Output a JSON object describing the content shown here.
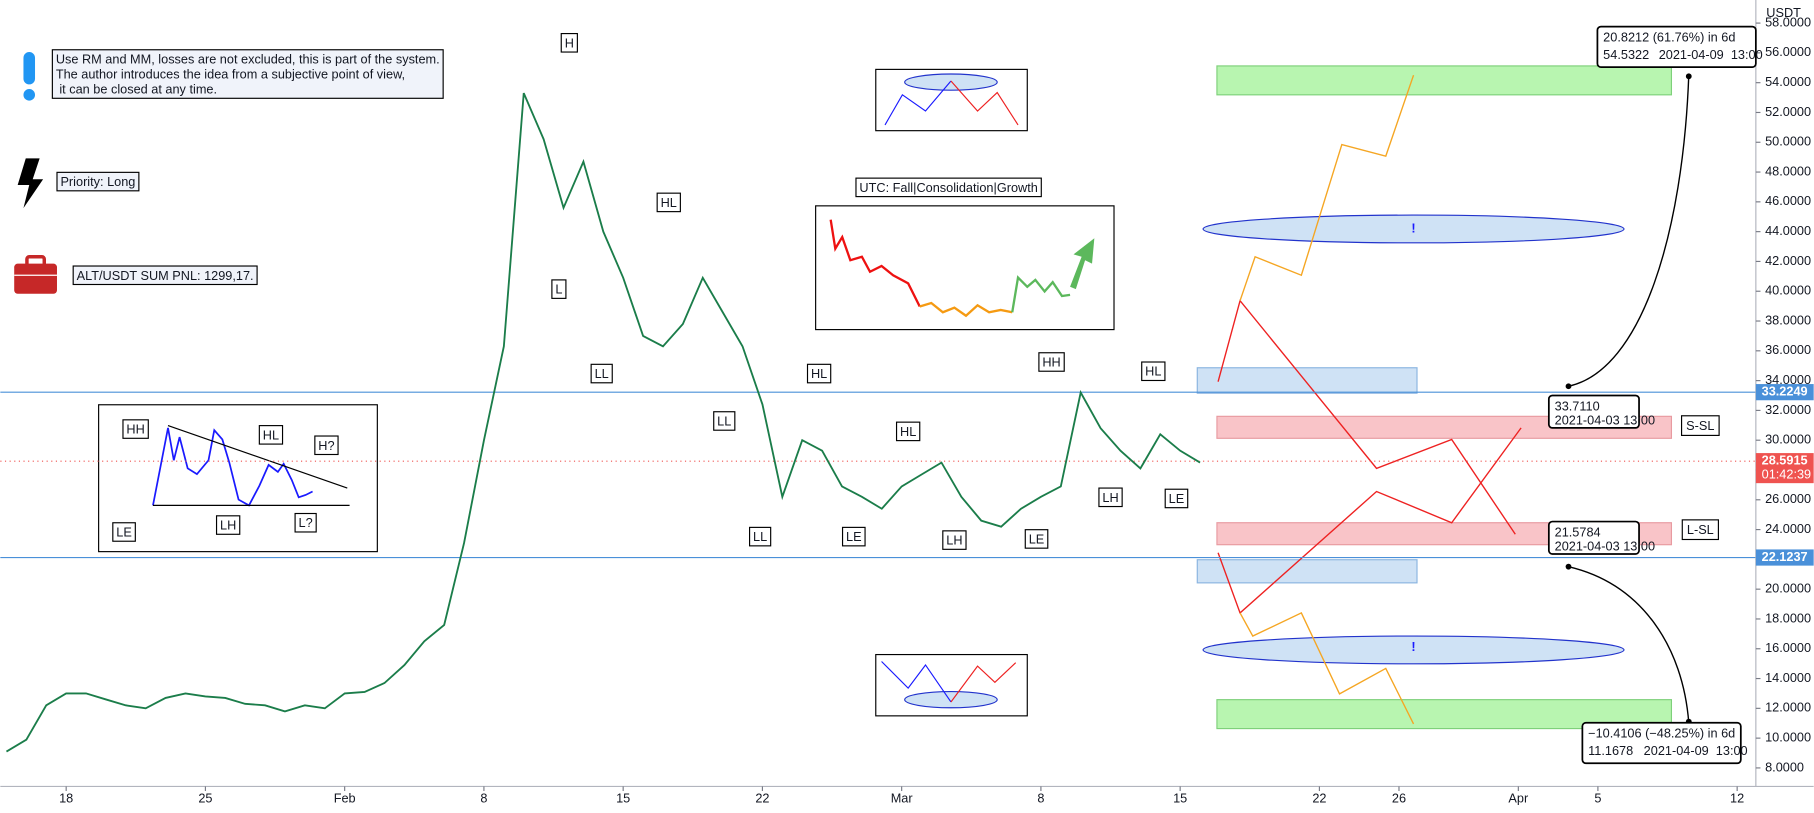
{
  "chart_data": {
    "type": "line",
    "axis_unit": "USDT",
    "x": [
      15,
      16,
      17,
      18,
      19,
      20,
      21,
      22,
      23,
      24,
      25,
      26,
      27,
      28,
      29,
      30,
      31,
      32,
      33,
      34,
      35,
      36,
      37,
      38,
      39,
      40,
      41,
      42,
      43,
      44,
      45,
      46,
      47,
      48,
      49,
      50,
      51,
      52,
      53,
      54,
      55,
      56,
      57,
      58,
      59,
      60,
      61,
      62,
      63,
      64,
      65,
      66,
      67,
      68,
      69,
      70,
      71,
      72,
      73,
      74,
      75
    ],
    "values": [
      9.1,
      9.9,
      12.2,
      13.0,
      13.0,
      12.6,
      12.2,
      12.0,
      12.7,
      13.0,
      12.8,
      12.7,
      12.3,
      12.2,
      11.8,
      12.2,
      12.0,
      13.0,
      13.1,
      13.7,
      14.9,
      16.5,
      17.6,
      23.1,
      30.0,
      36.3,
      53.3,
      50.2,
      45.6,
      48.7,
      44.0,
      40.9,
      37.0,
      36.3,
      37.8,
      40.9,
      38.6,
      36.3,
      32.4,
      26.2,
      30.0,
      29.3,
      26.9,
      26.2,
      25.4,
      26.9,
      27.7,
      28.5,
      26.2,
      24.6,
      24.2,
      25.4,
      26.2,
      26.9,
      33.2,
      30.8,
      29.3,
      28.1,
      30.4,
      29.3,
      28.5
    ],
    "color": "#1b7d4a",
    "xlim": [
      14.69,
      102.94
    ],
    "xticks": [
      18,
      25,
      {
        "value": 32,
        "label": "Feb"
      },
      {
        "value": 39,
        "label": "8"
      },
      {
        "value": 46,
        "label": "15"
      },
      {
        "value": 53,
        "label": "22"
      },
      {
        "value": 60,
        "label": "Mar"
      },
      {
        "value": 67,
        "label": "8"
      },
      {
        "value": 74,
        "label": "15"
      },
      {
        "value": 81,
        "label": "22"
      },
      {
        "value": 85,
        "label": "26"
      },
      {
        "value": 91,
        "label": "Apr"
      },
      {
        "value": 95,
        "label": "5"
      },
      {
        "value": 102,
        "label": "12"
      }
    ],
    "ylim": [
      6.76,
      59.55
    ],
    "yticks": [
      {
        "value": 8,
        "label": "8.0000"
      },
      {
        "value": 10,
        "label": "10.0000"
      },
      {
        "value": 12,
        "label": "12.0000"
      },
      {
        "value": 14,
        "label": "14.0000"
      },
      {
        "value": 16,
        "label": "16.0000"
      },
      {
        "value": 18,
        "label": "18.0000"
      },
      {
        "value": 20,
        "label": "20.0000"
      },
      {
        "value": 22,
        "label": "22.0000"
      },
      {
        "value": 24,
        "label": "24.0000"
      },
      {
        "value": 26,
        "label": "26.0000"
      },
      {
        "value": 28,
        "label": "28.0000"
      },
      {
        "value": 30,
        "label": "30.0000"
      },
      {
        "value": 32,
        "label": "32.0000"
      },
      {
        "value": 34,
        "label": "34.0000"
      },
      {
        "value": 36,
        "label": "36.0000"
      },
      {
        "value": 38,
        "label": "38.0000"
      },
      {
        "value": 40,
        "label": "40.0000"
      },
      {
        "value": 42,
        "label": "42.0000"
      },
      {
        "value": 44,
        "label": "44.0000"
      },
      {
        "value": 46,
        "label": "46.0000"
      },
      {
        "value": 48,
        "label": "48.0000"
      },
      {
        "value": 50,
        "label": "50.0000"
      },
      {
        "value": 52,
        "label": "52.0000"
      },
      {
        "value": 54,
        "label": "54.0000"
      },
      {
        "value": 56,
        "label": "56.0000"
      },
      {
        "value": 58,
        "label": "58.0000"
      }
    ],
    "levels": [
      33.2249,
      22.1237
    ],
    "last_price": 28.5915,
    "countdown": "01:42:39"
  },
  "annotations": {
    "notes": [
      "Use RM and MM, losses are not excluded, this is part of the system.",
      "The author introduces the idea from a subjective point of view,",
      " it can be closed at any time."
    ],
    "priority": "Priority: Long",
    "pnl": "ALT/USDT SUM PNL: 1299,17.",
    "phases": "UTC: Fall|Consolidation|Growth",
    "wave_labels": [
      "H",
      "L",
      "HL",
      "LL",
      "LL",
      "HL",
      "LL",
      "LE",
      "HL",
      "LH",
      "LE",
      "HH",
      "HL",
      "LH",
      "LE"
    ],
    "pattern_labels": [
      "HH",
      "HL",
      "H?",
      "LE",
      "LH",
      "L?"
    ],
    "stop_labels": [
      "S-SL",
      "L-SL"
    ],
    "alerts": [
      "!",
      "!"
    ],
    "measures": [
      {
        "change": "20.8212 (61.76%) in 6d",
        "price": "54.5322",
        "time": "2021-04-09  13:00"
      },
      {
        "change": "−10.4106 (−48.25%) in 6d",
        "price": "11.1678",
        "time": "2021-04-09  13:00"
      }
    ],
    "points": [
      {
        "price": "33.7110",
        "time": "2021-04-03 13:00"
      },
      {
        "price": "21.5784",
        "time": "2021-04-03 13:00"
      }
    ]
  }
}
